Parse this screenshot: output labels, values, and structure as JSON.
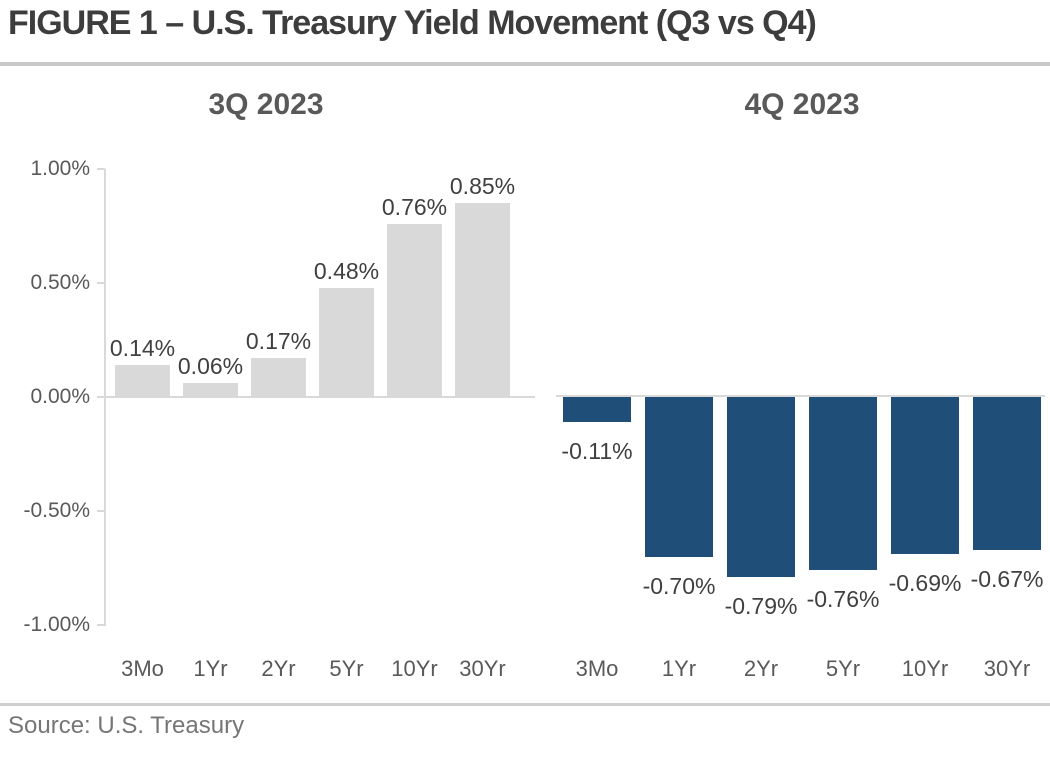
{
  "header": {
    "title": "FIGURE 1 – U.S. Treasury Yield Movement (Q3 vs Q4)"
  },
  "footer": {
    "source": "Source: U.S. Treasury"
  },
  "colors": {
    "q3_bar": "#d9d9d9",
    "q4_bar": "#1f4e79",
    "axis_line": "#d9d9d9",
    "label_text": "#404040",
    "axis_text": "#595959"
  },
  "chart_data": [
    {
      "type": "bar",
      "title": "3Q 2023",
      "categories": [
        "3Mo",
        "1Yr",
        "2Yr",
        "5Yr",
        "10Yr",
        "30Yr"
      ],
      "values": [
        0.14,
        0.06,
        0.17,
        0.48,
        0.76,
        0.85
      ],
      "labels": [
        "0.14%",
        "0.06%",
        "0.17%",
        "0.48%",
        "0.76%",
        "0.85%"
      ],
      "bar_color": "#d9d9d9",
      "label_position": "above",
      "xlabel": "",
      "ylabel": "",
      "ylim": [
        -1.0,
        1.0
      ],
      "yticks": [
        "1.00%",
        "0.50%",
        "0.00%",
        "-0.50%",
        "-1.00%"
      ],
      "y_axis_visible": true,
      "grid": false,
      "legend": false
    },
    {
      "type": "bar",
      "title": "4Q 2023",
      "categories": [
        "3Mo",
        "1Yr",
        "2Yr",
        "5Yr",
        "10Yr",
        "30Yr"
      ],
      "values": [
        -0.11,
        -0.7,
        -0.79,
        -0.76,
        -0.69,
        -0.67
      ],
      "labels": [
        "-0.11%",
        "-0.70%",
        "-0.79%",
        "-0.76%",
        "-0.69%",
        "-0.67%"
      ],
      "bar_color": "#1f4e79",
      "label_position": "below",
      "xlabel": "",
      "ylabel": "",
      "ylim": [
        -1.0,
        1.0
      ],
      "yticks": [],
      "y_axis_visible": false,
      "grid": false,
      "legend": false
    }
  ]
}
